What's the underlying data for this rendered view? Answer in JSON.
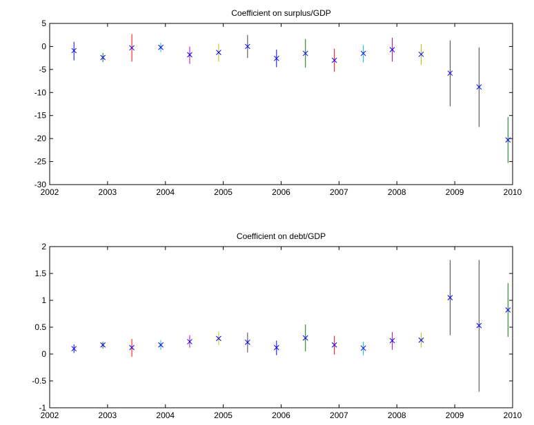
{
  "chart_data": [
    {
      "type": "scatter",
      "title": "Coefficient on surplus/GDP",
      "xlabel": "",
      "ylabel": "",
      "xlim": [
        2002,
        2010
      ],
      "ylim": [
        -30,
        5
      ],
      "x_ticks": [
        "2002",
        "2003",
        "2004",
        "2005",
        "2006",
        "2007",
        "2008",
        "2009",
        "2010"
      ],
      "y_ticks": [
        "5",
        "0",
        "-5",
        "-10",
        "-15",
        "-20",
        "-25",
        "-30"
      ],
      "marker": "x",
      "marker_color": "#0000ff",
      "grid": false,
      "series": [
        {
          "x": 2002.42,
          "y": -0.9,
          "low": -3.0,
          "high": 1.0,
          "color": "#0000ff"
        },
        {
          "x": 2002.92,
          "y": -2.4,
          "low": -3.4,
          "high": -1.4,
          "color": "#008000"
        },
        {
          "x": 2003.42,
          "y": -0.3,
          "low": -3.3,
          "high": 2.7,
          "color": "#ff0000"
        },
        {
          "x": 2003.92,
          "y": -0.2,
          "low": -1.2,
          "high": 0.8,
          "color": "#00bfbf"
        },
        {
          "x": 2004.42,
          "y": -1.8,
          "low": -3.8,
          "high": 0.0,
          "color": "#bf00bf"
        },
        {
          "x": 2004.92,
          "y": -1.3,
          "low": -3.3,
          "high": 0.6,
          "color": "#bfbf00"
        },
        {
          "x": 2005.42,
          "y": 0.0,
          "low": -2.5,
          "high": 2.5,
          "color": "#404040"
        },
        {
          "x": 2005.92,
          "y": -2.6,
          "low": -4.5,
          "high": -0.7,
          "color": "#0000ff"
        },
        {
          "x": 2006.42,
          "y": -1.5,
          "low": -4.6,
          "high": 1.6,
          "color": "#008000"
        },
        {
          "x": 2006.92,
          "y": -3.0,
          "low": -5.5,
          "high": -0.5,
          "color": "#ff0000"
        },
        {
          "x": 2007.42,
          "y": -1.5,
          "low": -3.5,
          "high": 0.3,
          "color": "#00bfbf"
        },
        {
          "x": 2007.92,
          "y": -0.7,
          "low": -3.3,
          "high": 1.9,
          "color": "#bf00bf"
        },
        {
          "x": 2008.42,
          "y": -1.7,
          "low": -4.0,
          "high": 0.5,
          "color": "#bfbf00"
        },
        {
          "x": 2008.92,
          "y": -5.8,
          "low": -13.0,
          "high": 1.3,
          "color": "#404040"
        },
        {
          "x": 2009.42,
          "y": -8.8,
          "low": -17.5,
          "high": -0.2,
          "color": "#404040"
        },
        {
          "x": 2009.92,
          "y": -20.3,
          "low": -25.3,
          "high": -15.3,
          "color": "#008000"
        }
      ]
    },
    {
      "type": "scatter",
      "title": "Coefficient on debt/GDP",
      "xlabel": "",
      "ylabel": "",
      "xlim": [
        2002,
        2010
      ],
      "ylim": [
        -1,
        2
      ],
      "x_ticks": [
        "2002",
        "2003",
        "2004",
        "2005",
        "2006",
        "2007",
        "2008",
        "2009",
        "2010"
      ],
      "y_ticks": [
        "2",
        "1.5",
        "1",
        "0.5",
        "0",
        "-0.5",
        "-1"
      ],
      "marker": "x",
      "marker_color": "#0000ff",
      "grid": false,
      "series": [
        {
          "x": 2002.42,
          "y": 0.1,
          "low": 0.02,
          "high": 0.18,
          "color": "#0000ff"
        },
        {
          "x": 2002.92,
          "y": 0.17,
          "low": 0.1,
          "high": 0.23,
          "color": "#008000"
        },
        {
          "x": 2003.42,
          "y": 0.12,
          "low": -0.05,
          "high": 0.28,
          "color": "#ff0000"
        },
        {
          "x": 2003.92,
          "y": 0.17,
          "low": 0.08,
          "high": 0.26,
          "color": "#00bfbf"
        },
        {
          "x": 2004.42,
          "y": 0.23,
          "low": 0.12,
          "high": 0.35,
          "color": "#bf00bf"
        },
        {
          "x": 2004.92,
          "y": 0.29,
          "low": 0.17,
          "high": 0.42,
          "color": "#bfbf00"
        },
        {
          "x": 2005.42,
          "y": 0.22,
          "low": 0.03,
          "high": 0.4,
          "color": "#404040"
        },
        {
          "x": 2005.92,
          "y": 0.12,
          "low": -0.02,
          "high": 0.25,
          "color": "#0000ff"
        },
        {
          "x": 2006.42,
          "y": 0.3,
          "low": 0.05,
          "high": 0.55,
          "color": "#008000"
        },
        {
          "x": 2006.92,
          "y": 0.17,
          "low": -0.01,
          "high": 0.34,
          "color": "#ff0000"
        },
        {
          "x": 2007.42,
          "y": 0.11,
          "low": -0.02,
          "high": 0.23,
          "color": "#00bfbf"
        },
        {
          "x": 2007.92,
          "y": 0.25,
          "low": 0.08,
          "high": 0.41,
          "color": "#bf00bf"
        },
        {
          "x": 2008.42,
          "y": 0.26,
          "low": 0.12,
          "high": 0.4,
          "color": "#bfbf00"
        },
        {
          "x": 2008.92,
          "y": 1.05,
          "low": 0.35,
          "high": 1.75,
          "color": "#404040"
        },
        {
          "x": 2009.42,
          "y": 0.53,
          "low": -0.7,
          "high": 1.75,
          "color": "#404040"
        },
        {
          "x": 2009.92,
          "y": 0.82,
          "low": 0.32,
          "high": 1.32,
          "color": "#008000"
        }
      ]
    }
  ]
}
